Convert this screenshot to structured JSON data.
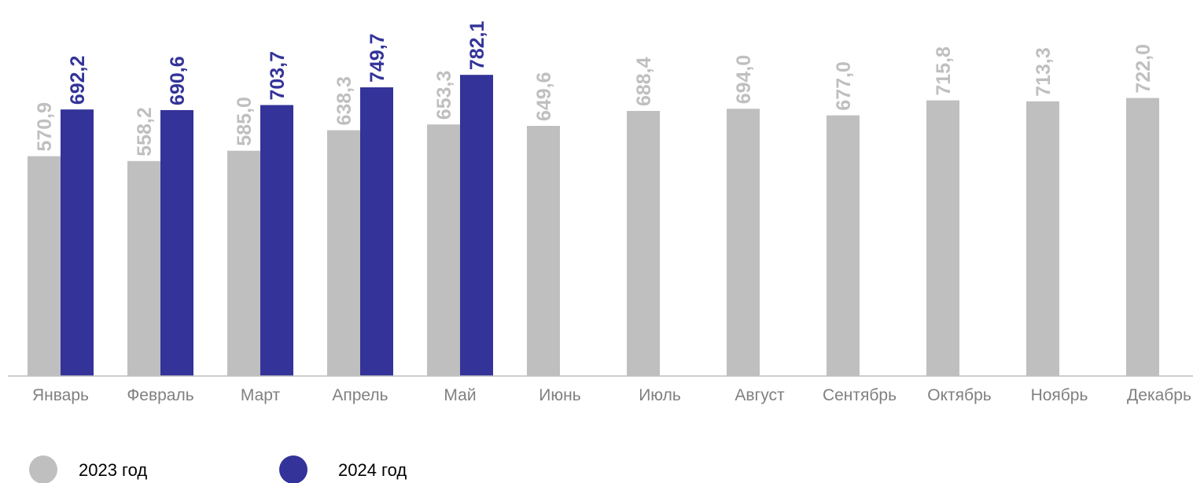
{
  "chart_data": {
    "type": "bar",
    "categories": [
      "Январь",
      "Февраль",
      "Март",
      "Апрель",
      "Май",
      "Июнь",
      "Июль",
      "Август",
      "Сентябрь",
      "Октябрь",
      "Ноябрь",
      "Декабрь"
    ],
    "series": [
      {
        "name": "2023 год",
        "color": "#bfbfbf",
        "values": [
          570.9,
          558.2,
          585.0,
          638.3,
          653.3,
          649.6,
          688.4,
          694.0,
          677.0,
          715.8,
          713.3,
          722.0
        ],
        "labels": [
          "570,9",
          "558,2",
          "585,0",
          "638,3",
          "653,3",
          "649,6",
          "688,4",
          "694,0",
          "677,0",
          "715,8",
          "713,3",
          "722,0"
        ]
      },
      {
        "name": "2024 год",
        "color": "#333399",
        "values": [
          692.2,
          690.6,
          703.7,
          749.7,
          782.1,
          null,
          null,
          null,
          null,
          null,
          null,
          null
        ],
        "labels": [
          "692,2",
          "690,6",
          "703,7",
          "749,7",
          "782,1",
          null,
          null,
          null,
          null,
          null,
          null,
          null
        ]
      }
    ],
    "title": "",
    "xlabel": "",
    "ylabel": "",
    "ylim": [
      0,
      835
    ],
    "grid": false,
    "legend": "bottom-left",
    "data_label_orientation": "vertical"
  },
  "colors": {
    "series_2023": "#bfbfbf",
    "series_2024": "#333399",
    "axis": "#bfbfbf",
    "category_text": "#808080"
  }
}
